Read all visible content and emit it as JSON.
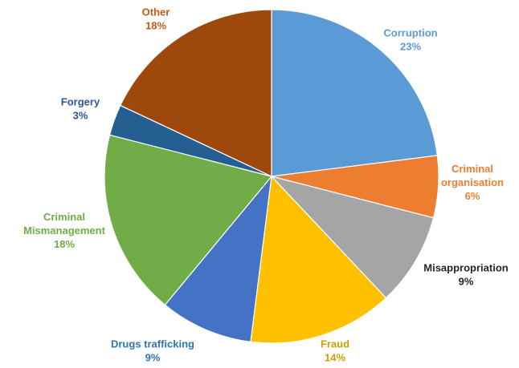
{
  "chart_data": {
    "type": "pie",
    "title": "",
    "slices": [
      {
        "name": "Corruption",
        "value": 23,
        "label": "23%",
        "color": "#5B9BD5",
        "label_color": "#5B9BD5"
      },
      {
        "name": "Criminal organisation",
        "label_lines": [
          "Criminal",
          "organisation"
        ],
        "value": 6,
        "label": "6%",
        "color": "#ED7D31",
        "label_color": "#ED7D31"
      },
      {
        "name": "Misappropriation",
        "value": 9,
        "label": "9%",
        "color": "#A5A5A5",
        "label_color": "#262626"
      },
      {
        "name": "Fraud",
        "value": 14,
        "label": "14%",
        "color": "#FFC000",
        "label_color": "#C9A000"
      },
      {
        "name": "Drugs trafficking",
        "value": 9,
        "label": "9%",
        "color": "#4472C4",
        "label_color": "#2E75B6"
      },
      {
        "name": "Criminal Mismanagement",
        "label_lines": [
          "Criminal",
          "Mismanagement"
        ],
        "value": 18,
        "label": "18%",
        "color": "#70AD47",
        "label_color": "#70AD47"
      },
      {
        "name": "Forgery",
        "value": 3,
        "label": "3%",
        "color": "#255E91",
        "label_color": "#2F5597"
      },
      {
        "name": "Other",
        "value": 18,
        "label": "18%",
        "color": "#9E480E",
        "label_color": "#C55A11"
      }
    ],
    "start_angle_deg": 0,
    "direction": "clockwise",
    "legend": "none"
  }
}
